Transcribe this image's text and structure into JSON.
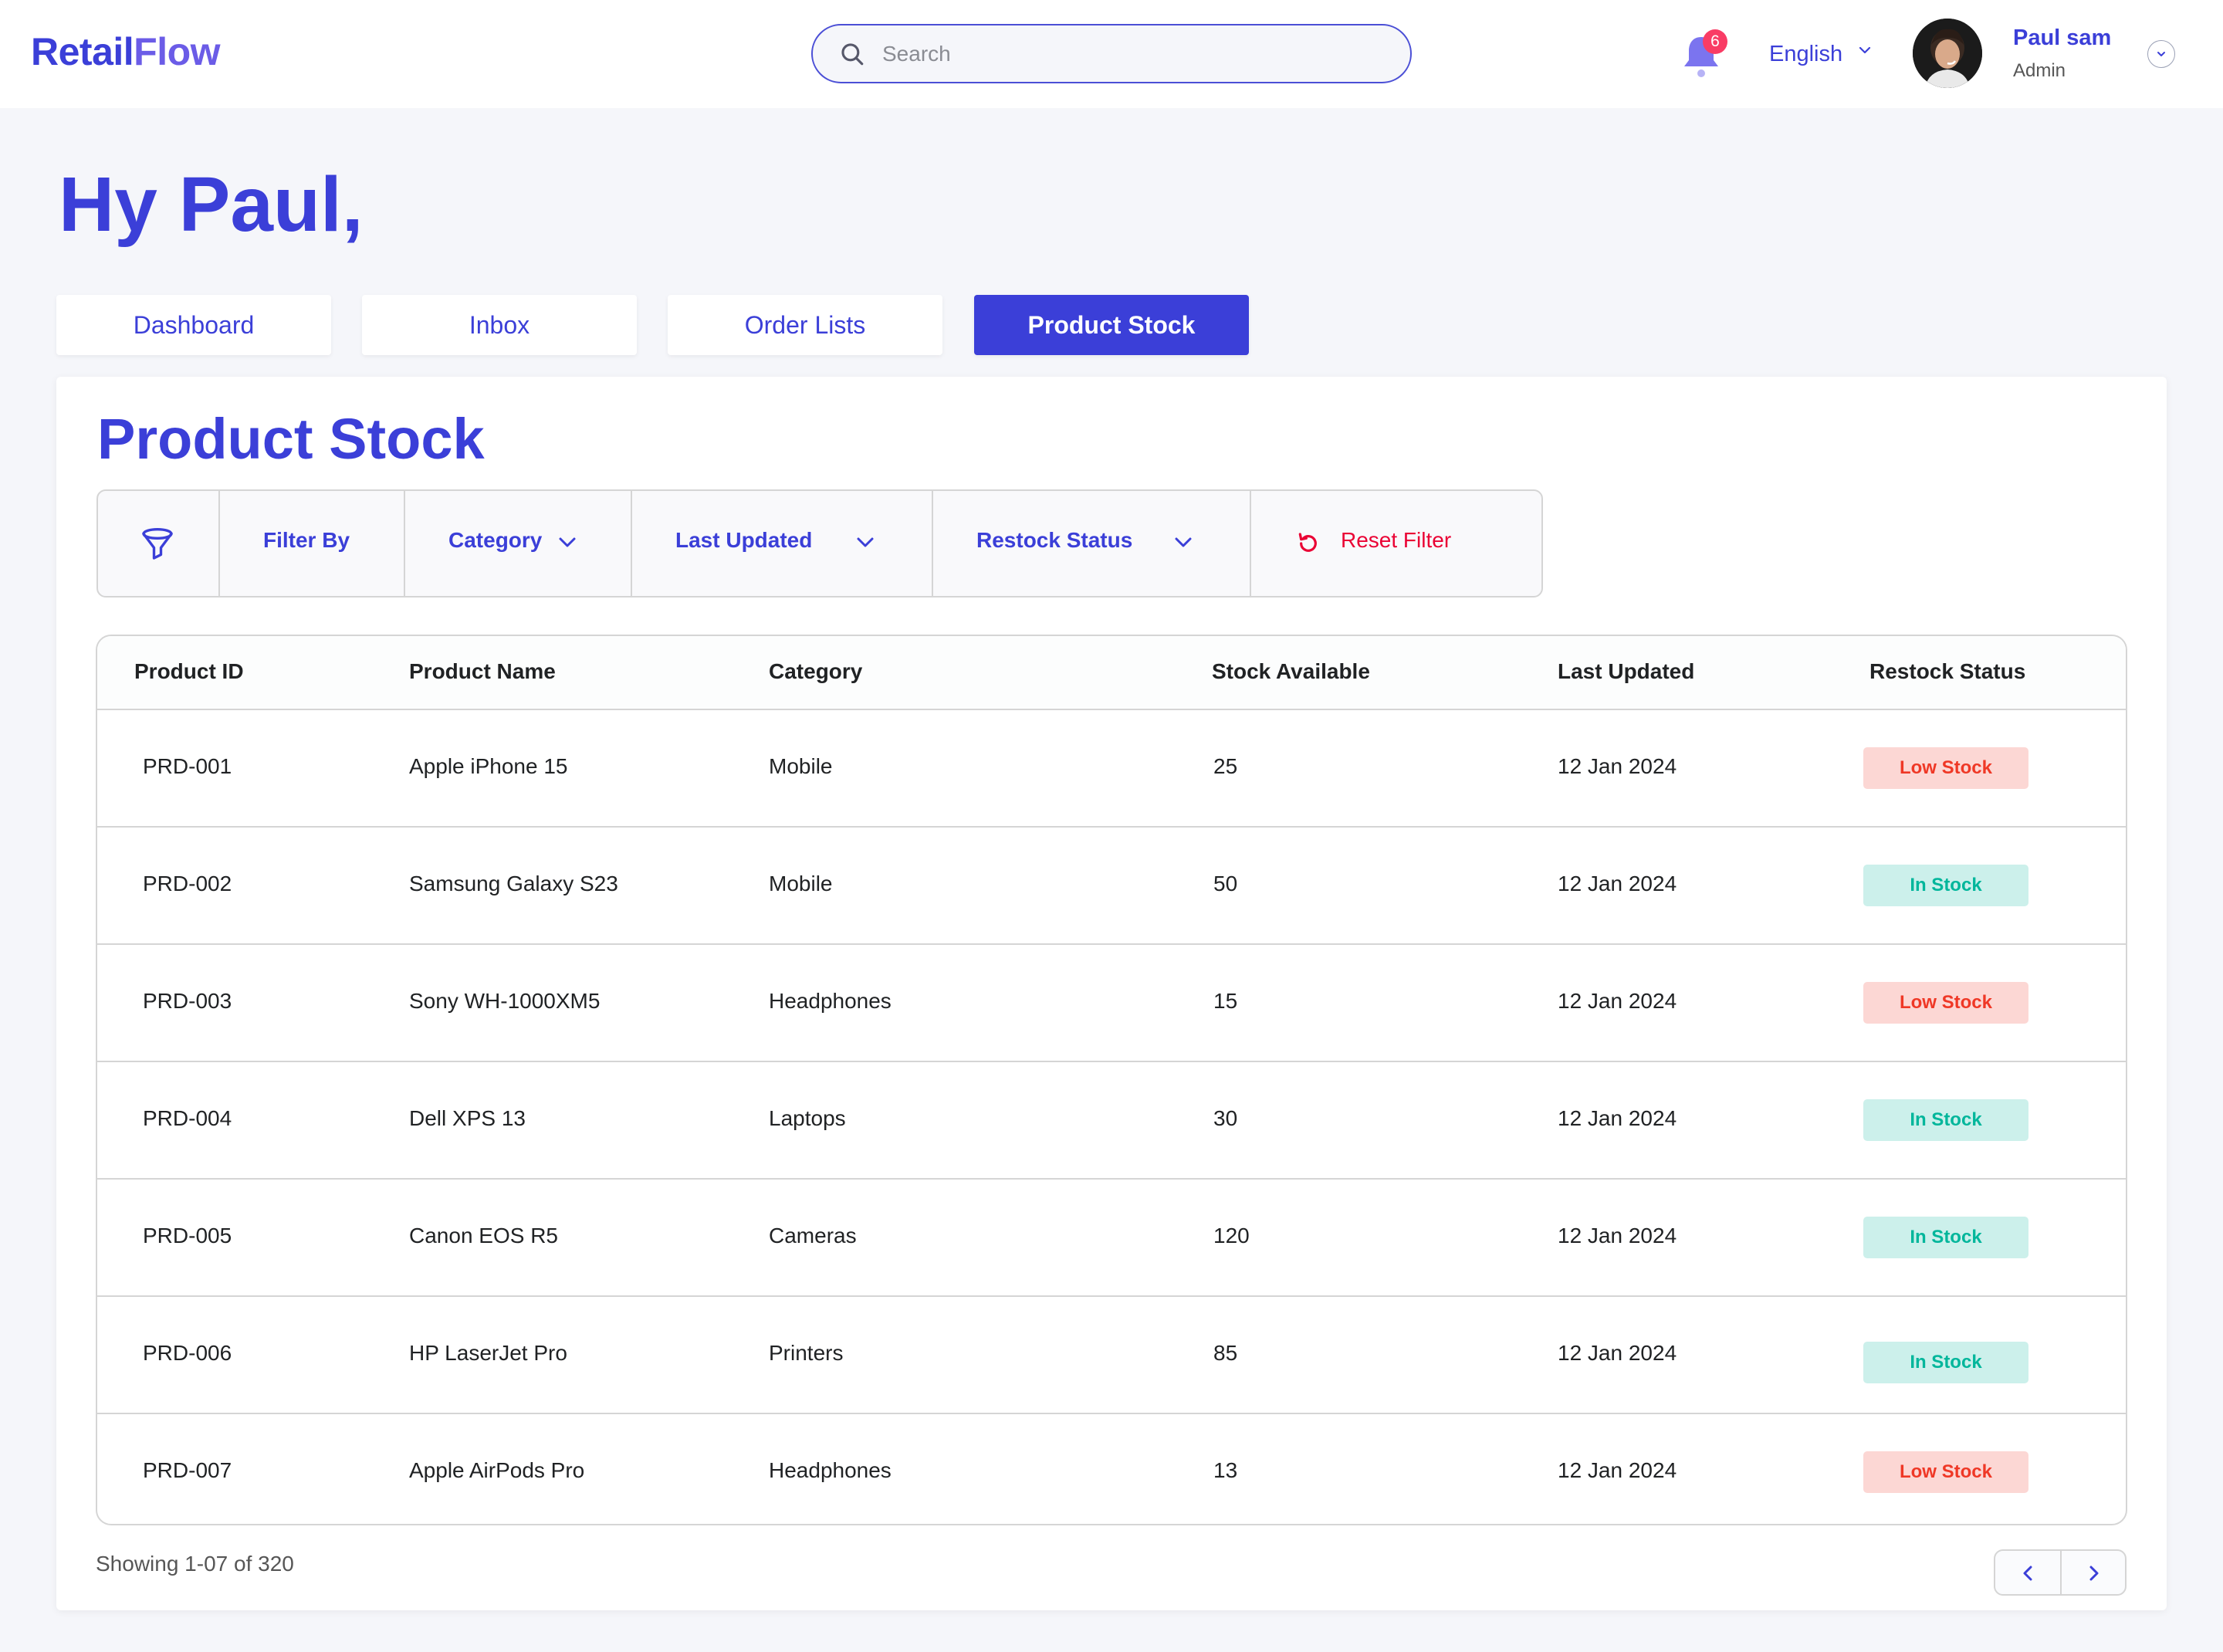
{
  "header": {
    "logo_part1": "Retail",
    "logo_part2": "Flow",
    "search_placeholder": "Search",
    "notification_count": "6",
    "language": "English",
    "user_name": "Paul sam",
    "user_role": "Admin"
  },
  "greeting": "Hy Paul,",
  "tabs": [
    {
      "label": "Dashboard",
      "active": false
    },
    {
      "label": "Inbox",
      "active": false
    },
    {
      "label": "Order Lists",
      "active": false
    },
    {
      "label": "Product Stock",
      "active": true
    }
  ],
  "page_title": "Product Stock",
  "filters": {
    "filter_by": "Filter By",
    "category": "Category",
    "last_updated": "Last Updated",
    "restock_status": "Restock Status",
    "reset": "Reset Filter"
  },
  "table": {
    "headers": [
      "Product ID",
      "Product Name",
      "Category",
      "Stock Available",
      "Last Updated",
      "Restock Status"
    ],
    "rows": [
      {
        "id": "PRD-001",
        "name": "Apple iPhone 15",
        "category": "Mobile",
        "stock": "25",
        "updated": "12 Jan 2024",
        "status": "Low Stock",
        "status_type": "low"
      },
      {
        "id": "PRD-002",
        "name": "Samsung Galaxy S23",
        "category": "Mobile",
        "stock": "50",
        "updated": "12 Jan 2024",
        "status": "In Stock",
        "status_type": "in"
      },
      {
        "id": "PRD-003",
        "name": "Sony WH-1000XM5",
        "category": "Headphones",
        "stock": "15",
        "updated": "12 Jan 2024",
        "status": "Low Stock",
        "status_type": "low"
      },
      {
        "id": "PRD-004",
        "name": "Dell XPS 13",
        "category": "Laptops",
        "stock": "30",
        "updated": "12 Jan 2024",
        "status": "In Stock",
        "status_type": "in"
      },
      {
        "id": "PRD-005",
        "name": "Canon EOS R5",
        "category": "Cameras",
        "stock": "120",
        "updated": "12 Jan 2024",
        "status": "In Stock",
        "status_type": "in"
      },
      {
        "id": "PRD-006",
        "name": "HP LaserJet Pro",
        "category": "Printers",
        "stock": "85",
        "updated": "12 Jan 2024",
        "status": "In Stock",
        "status_type": "in"
      },
      {
        "id": "PRD-007",
        "name": "Apple AirPods Pro",
        "category": "Headphones",
        "stock": "13",
        "updated": "12 Jan 2024",
        "status": "Low Stock",
        "status_type": "low"
      }
    ]
  },
  "pagination": {
    "showing": "Showing 1-07 of 320"
  },
  "colors": {
    "accent": "#3b3fd8",
    "low_stock_bg": "#fcd7d4",
    "low_stock_text": "#ef3826",
    "in_stock_bg": "#ccf0eb",
    "in_stock_text": "#00b69b",
    "reset_red": "#ea0234"
  }
}
